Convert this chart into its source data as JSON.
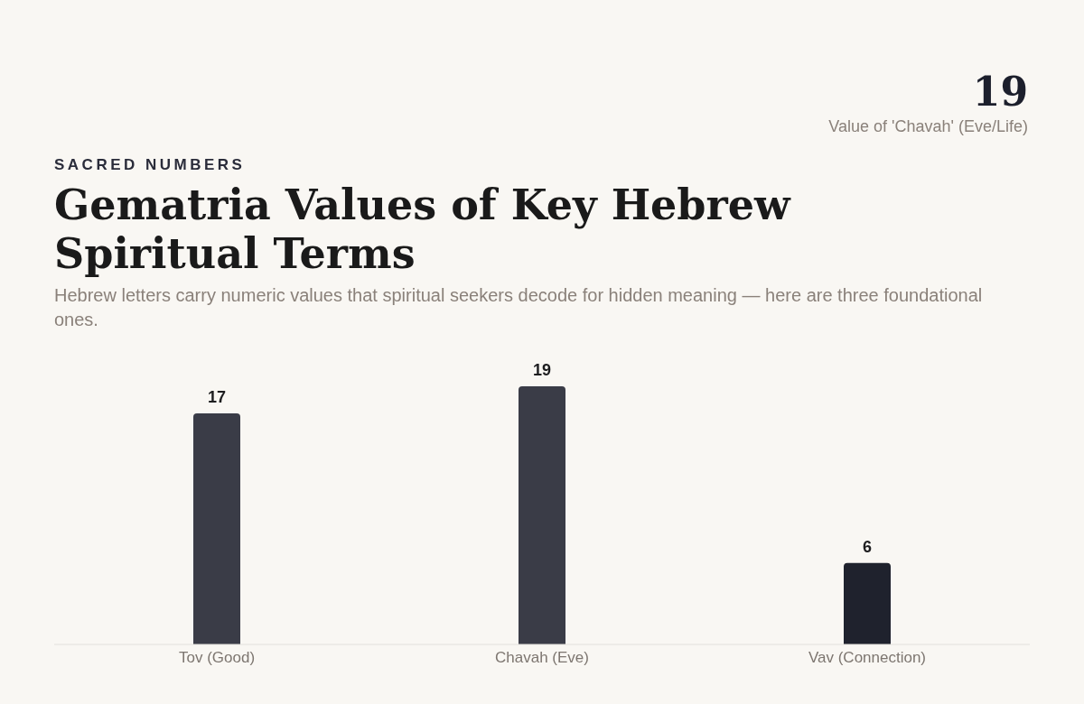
{
  "chart_data": {
    "type": "bar",
    "title": "Gematria Values of Key Hebrew Spiritual Terms",
    "subtitle": "Hebrew letters carry numeric values that spiritual seekers decode for hidden meaning — here are three foundational ones.",
    "annotations": [
      "19",
      "Value of 'Chavah' (Eve/Life)",
      "SACRED NUMBERS"
    ],
    "categories": [
      "Tov (Good)",
      "Chavah (Eve)",
      "Vav (Connection)"
    ],
    "values": [
      17,
      19,
      6
    ],
    "colors": [
      "#3a3c47",
      "#3a3c47",
      "#1f222d"
    ],
    "data_labels": true
  }
}
